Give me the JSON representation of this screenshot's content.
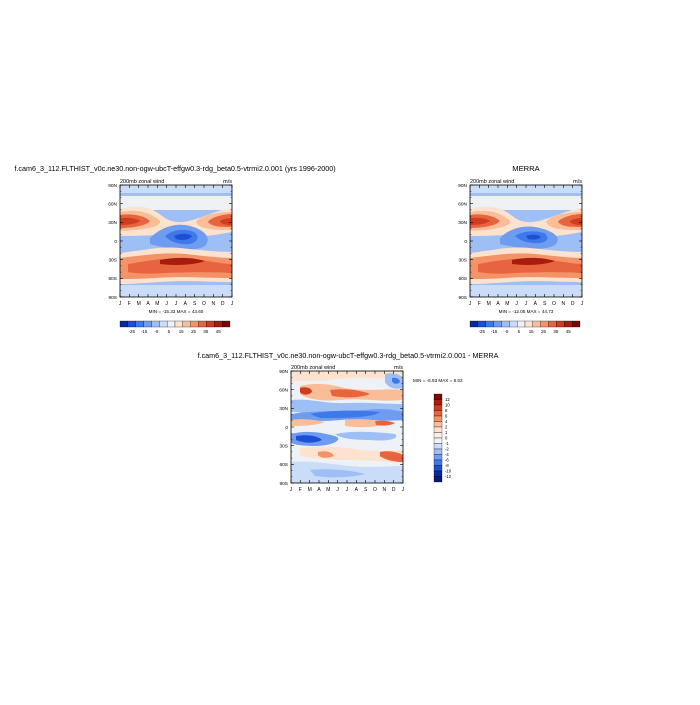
{
  "panels": [
    {
      "title": "f.cam6_3_112.FLTHIST_v0c.ne30.non-ogw-ubcT-effgw0.3-rdg_beta0.5-vtrmi2.0.001 (yrs 1996-2000)",
      "subtitle_left": "200mb zonal wind",
      "subtitle_right": "m/s",
      "minmax": "MIN = -15.33  MAX = 43.60"
    },
    {
      "title": "MERRA",
      "subtitle_left": "200mb zonal wind",
      "subtitle_right": "m/s",
      "minmax": "MIN = -12.05  MAX = 44.73"
    },
    {
      "title": "f.cam6_3_112.FLTHIST_v0c.ne30.non-ogw-ubcT-effgw0.3-rdg_beta0.5-vtrmi2.0.001 - MERRA",
      "subtitle_left": "200mb zonal wind",
      "subtitle_right": "m/s",
      "minmax": "MIN =  -6.93  MAX =   6.53"
    }
  ],
  "chart_data": [
    {
      "type": "heatmap",
      "title": "f.cam6_3_112.FLTHIST_v0c.ne30.non-ogw-ubcT-effgw0.3-rdg_beta0.5-vtrmi2.0.001 (yrs 1996-2000)",
      "subtitle": "200mb zonal wind",
      "units": "m/s",
      "x_ticks": [
        "J",
        "F",
        "M",
        "A",
        "M",
        "J",
        "J",
        "A",
        "S",
        "O",
        "N",
        "D",
        "J"
      ],
      "y_ticks": [
        "90N",
        "60N",
        "30N",
        "0",
        "30S",
        "60S",
        "90S"
      ],
      "min": -15.33,
      "max": 43.6,
      "colorbar_ticks": [
        "-25",
        "-15",
        "-5",
        "5",
        "15",
        "25",
        "35",
        "45"
      ],
      "colors": [
        "#0a2a9c",
        "#1c4fd6",
        "#3f78e8",
        "#6d9cf0",
        "#9dbff5",
        "#c9dcf8",
        "#eef2f7",
        "#fde3cf",
        "#f9bd98",
        "#f49368",
        "#e7643f",
        "#d03c20",
        "#a81c0e",
        "#7a0906"
      ]
    },
    {
      "type": "heatmap",
      "title": "MERRA",
      "subtitle": "200mb zonal wind",
      "units": "m/s",
      "x_ticks": [
        "J",
        "F",
        "M",
        "A",
        "M",
        "J",
        "J",
        "A",
        "S",
        "O",
        "N",
        "D",
        "J"
      ],
      "y_ticks": [
        "90N",
        "60N",
        "30N",
        "0",
        "30S",
        "60S",
        "90S"
      ],
      "min": -12.05,
      "max": 44.73,
      "colorbar_ticks": [
        "-25",
        "-15",
        "-5",
        "5",
        "15",
        "25",
        "35",
        "45"
      ],
      "colors": [
        "#0a2a9c",
        "#1c4fd6",
        "#3f78e8",
        "#6d9cf0",
        "#9dbff5",
        "#c9dcf8",
        "#eef2f7",
        "#fde3cf",
        "#f9bd98",
        "#f49368",
        "#e7643f",
        "#d03c20",
        "#a81c0e",
        "#7a0906"
      ]
    },
    {
      "type": "heatmap",
      "title": "f.cam6_3_112.FLTHIST_v0c.ne30.non-ogw-ubcT-effgw0.3-rdg_beta0.5-vtrmi2.0.001 - MERRA",
      "subtitle": "200mb zonal wind",
      "units": "m/s",
      "x_ticks": [
        "J",
        "F",
        "M",
        "A",
        "M",
        "J",
        "J",
        "A",
        "S",
        "O",
        "N",
        "D",
        "J"
      ],
      "y_ticks": [
        "90N",
        "60N",
        "30N",
        "0",
        "30S",
        "60S",
        "90S"
      ],
      "min": -6.93,
      "max": 6.53,
      "colorbar_ticks": [
        "12",
        "10",
        "8",
        "6",
        "4",
        "2",
        "1",
        "0",
        "-1",
        "-2",
        "-4",
        "-6",
        "-8",
        "-10",
        "-12"
      ],
      "colors": [
        "#7a0906",
        "#a81c0e",
        "#d03c20",
        "#e7643f",
        "#f49368",
        "#f9bd98",
        "#fde3cf",
        "#fbf0e6",
        "#eef2f7",
        "#c9dcf8",
        "#9dbff5",
        "#6d9cf0",
        "#3f78e8",
        "#1c4fd6",
        "#0a2a9c",
        "#061a78"
      ]
    }
  ]
}
